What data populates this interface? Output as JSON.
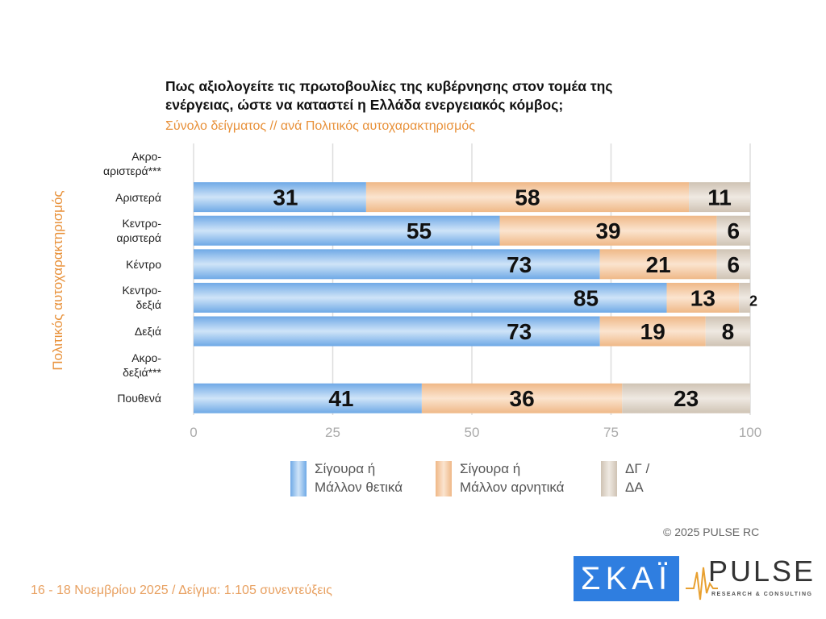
{
  "chart_data": {
    "type": "bar",
    "orientation": "horizontal",
    "stacked": true,
    "title": "Πως αξιολογείτε τις πρωτοβουλίες της κυβέρνησης στον τομέα της ενέργειας, ώστε να καταστεί η Ελλάδα ενεργειακός κόμβος;",
    "subtitle": "Σύνολο δείγματος // ανά Πολιτικός αυτοχαρακτηρισμός",
    "ylabel": "Πολιτικός αυτοχαρακτηρισμός",
    "categories": [
      "Ακρο-\nαριστερά***",
      "Αριστερά",
      "Κεντρο-\nαριστερά",
      "Κέντρο",
      "Κεντρο-\nδεξιά",
      "Δεξιά",
      "Ακρο-\nδεξιά***",
      "Πουθενά"
    ],
    "xlim": [
      0,
      100
    ],
    "xticks": [
      "0",
      "25",
      "50",
      "75",
      "100"
    ],
    "grid": true,
    "legend": "bottom",
    "series": [
      {
        "name": "Σίγουρα ή Μάλλον θετικά",
        "color": "#7fb6ea",
        "values": [
          null,
          31,
          55,
          73,
          85,
          73,
          null,
          41
        ]
      },
      {
        "name": "Σίγουρα ή Μάλλον αρνητικά",
        "color": "#f2c39a",
        "values": [
          null,
          58,
          39,
          21,
          13,
          19,
          null,
          36
        ]
      },
      {
        "name": "ΔΓ / ΔΑ",
        "color": "#d6ccbf",
        "values": [
          null,
          11,
          6,
          6,
          2,
          8,
          null,
          23
        ]
      }
    ]
  },
  "legend_text": [
    [
      "Σίγουρα ή",
      "Μάλλον θετικά"
    ],
    [
      "Σίγουρα ή",
      "Μάλλον αρνητικά"
    ],
    [
      "ΔΓ /",
      "ΔΑ"
    ]
  ],
  "copyright": "©  2025  PULSE RC",
  "footer": "16 - 18 Νοεμβρίου 2025  /  Δείγμα:  1.105 συνεντεύξεις",
  "logos": {
    "skai": "ΣΚΑΪ",
    "pulse": "PULSE",
    "pulse_sub": "RESEARCH & CONSULTING"
  }
}
